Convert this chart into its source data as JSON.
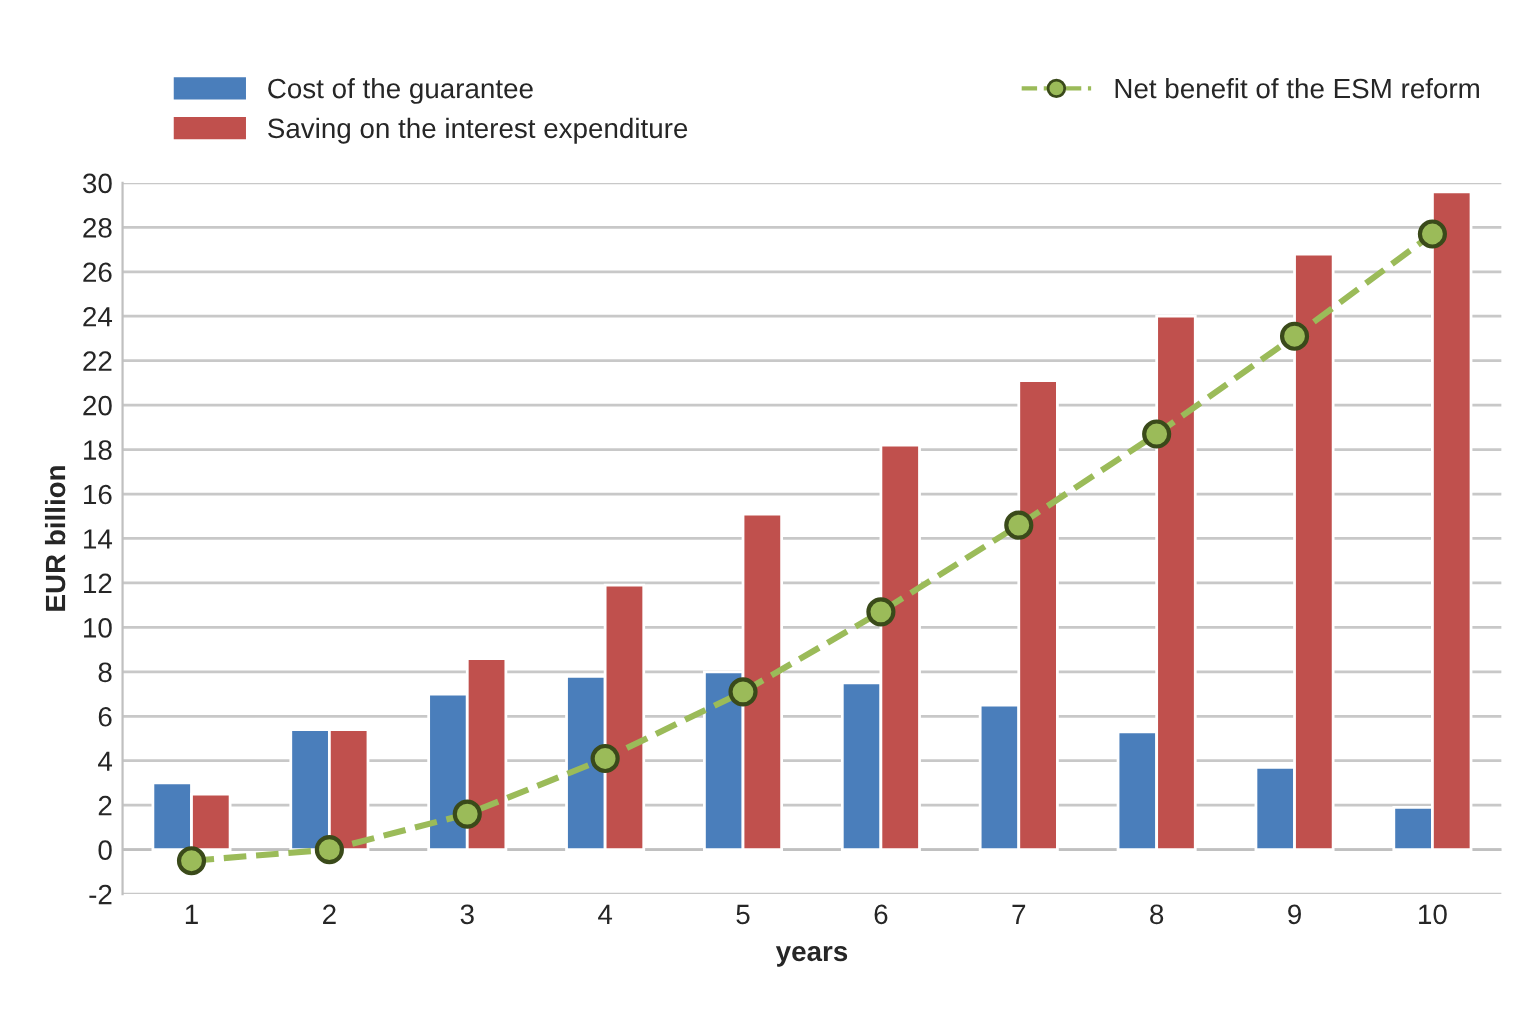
{
  "chart_data": {
    "type": "bar",
    "xlabel": "years",
    "ylabel": "EUR billion",
    "categories": [
      "1",
      "2",
      "3",
      "4",
      "5",
      "6",
      "7",
      "8",
      "9",
      "10"
    ],
    "series": [
      {
        "name": "Cost of the guarantee",
        "color": "#4a7ebb",
        "values": [
          3.0,
          5.4,
          7.0,
          7.8,
          8.0,
          7.5,
          6.5,
          5.3,
          3.7,
          1.9
        ]
      },
      {
        "name": "Saving on the interest expenditure",
        "color": "#c0504d",
        "values": [
          2.5,
          5.4,
          8.6,
          11.9,
          15.1,
          18.2,
          21.1,
          24.0,
          26.8,
          29.6
        ]
      },
      {
        "name": "Net benefit of the ESM reform",
        "type": "line",
        "color": "#9bbb59",
        "marker": "circle",
        "line_style": "dashed",
        "values": [
          -0.5,
          0.0,
          1.6,
          4.1,
          7.1,
          10.7,
          14.6,
          18.7,
          23.1,
          27.7
        ]
      }
    ],
    "ylim": [
      -2,
      30
    ],
    "yticks": [
      -2,
      0,
      2,
      4,
      6,
      8,
      10,
      12,
      14,
      16,
      18,
      20,
      22,
      24,
      26,
      28,
      30
    ],
    "grid": "y",
    "legend": "top"
  }
}
